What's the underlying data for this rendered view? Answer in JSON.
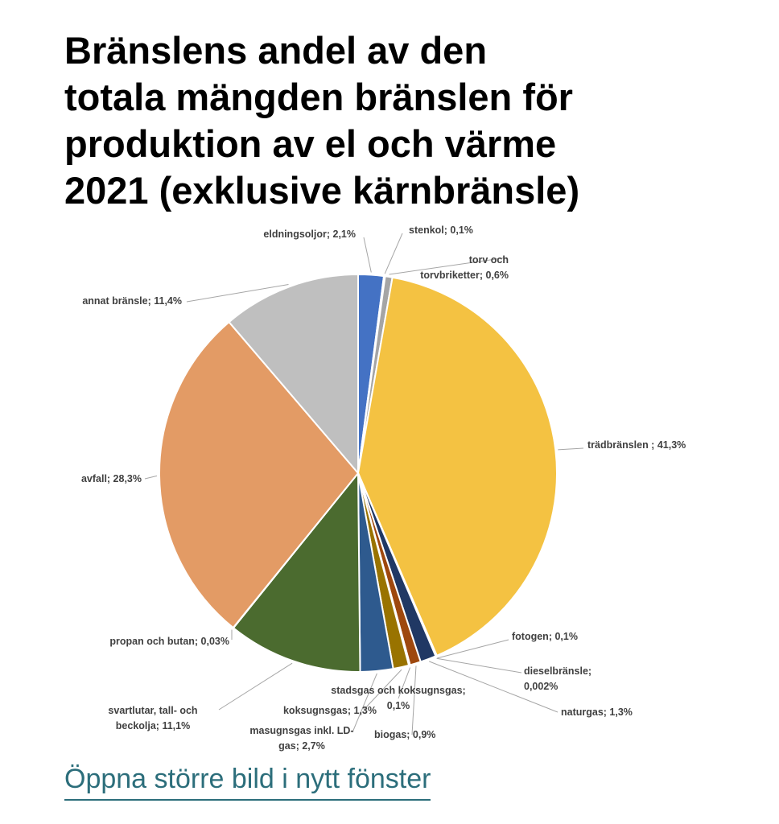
{
  "title_lines": [
    "Bränslens andel av den",
    "totala mängden bränslen för",
    "produktion av el och värme",
    "2021 (exklusive kärnbränsle)"
  ],
  "link_text": "Öppna större bild i nytt fönster",
  "chart_data": {
    "type": "pie",
    "title": "Bränslens andel av den totala mängden bränslen för produktion av el och värme 2021 (exklusive kärnbränsle)",
    "unit": "%",
    "start": "top, clockwise",
    "slices": [
      {
        "key": "eldningsoljor",
        "label": [
          "eldningsoljor; 2,1%"
        ],
        "value": 2.1,
        "color": "#4472c4"
      },
      {
        "key": "stenkol",
        "label": [
          "stenkol; 0,1%"
        ],
        "value": 0.1,
        "color": "#7f7f7f"
      },
      {
        "key": "torv",
        "label": [
          "torv och",
          "torvbriketter; 0,6%"
        ],
        "value": 0.6,
        "color": "#a5a5a5"
      },
      {
        "key": "tradbransle",
        "label": [
          "trädbränslen ; 41,3%"
        ],
        "value": 41.3,
        "color": "#f4c242"
      },
      {
        "key": "fotogen",
        "label": [
          "fotogen; 0,1%"
        ],
        "value": 0.1,
        "color": "#5b9bd5"
      },
      {
        "key": "diesel",
        "label": [
          "dieselbränsle;",
          "0,002%"
        ],
        "value": 0.002,
        "color": "#70ad47"
      },
      {
        "key": "naturgas",
        "label": [
          "naturgas; 1,3%"
        ],
        "value": 1.3,
        "color": "#203864"
      },
      {
        "key": "biogas",
        "label": [
          "biogas; 0,9%"
        ],
        "value": 0.9,
        "color": "#9e480e"
      },
      {
        "key": "stadsgas",
        "label": [
          "stadsgas och koksugnsgas;",
          "0,1%"
        ],
        "value": 0.1,
        "color": "#636363"
      },
      {
        "key": "koksugnsgas",
        "label": [
          "koksugnsgas; 1,3%"
        ],
        "value": 1.3,
        "color": "#997300"
      },
      {
        "key": "masugnsgas",
        "label": [
          "masugnsgas inkl. LD-",
          "gas; 2,7%"
        ],
        "value": 2.7,
        "color": "#2e5a8e"
      },
      {
        "key": "svartlutar",
        "label": [
          "svartlutar, tall- och",
          "beckolja; 11,1%"
        ],
        "value": 11.1,
        "color": "#4b6b2f"
      },
      {
        "key": "propan",
        "label": [
          "propan och butan; 0,03%"
        ],
        "value": 0.03,
        "color": "#264478"
      },
      {
        "key": "avfall",
        "label": [
          "avfall; 28,3%"
        ],
        "value": 28.3,
        "color": "#e39b65"
      },
      {
        "key": "annat",
        "label": [
          "annat bränsle; 11,4%"
        ],
        "value": 11.4,
        "color": "#bfbfbf"
      }
    ]
  }
}
